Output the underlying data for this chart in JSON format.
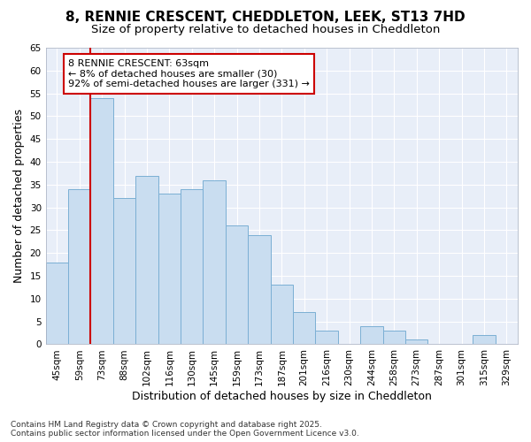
{
  "title_line1": "8, RENNIE CRESCENT, CHEDDLETON, LEEK, ST13 7HD",
  "title_line2": "Size of property relative to detached houses in Cheddleton",
  "xlabel": "Distribution of detached houses by size in Cheddleton",
  "ylabel": "Number of detached properties",
  "categories": [
    "45sqm",
    "59sqm",
    "73sqm",
    "88sqm",
    "102sqm",
    "116sqm",
    "130sqm",
    "145sqm",
    "159sqm",
    "173sqm",
    "187sqm",
    "201sqm",
    "216sqm",
    "230sqm",
    "244sqm",
    "258sqm",
    "273sqm",
    "287sqm",
    "301sqm",
    "315sqm",
    "329sqm"
  ],
  "values": [
    18,
    34,
    54,
    32,
    37,
    33,
    34,
    36,
    26,
    24,
    13,
    7,
    3,
    0,
    4,
    3,
    1,
    0,
    0,
    2,
    0
  ],
  "bar_color": "#c9ddf0",
  "bar_edge_color": "#7bafd4",
  "vline_color": "#cc0000",
  "annotation_text": "8 RENNIE CRESCENT: 63sqm\n← 8% of detached houses are smaller (30)\n92% of semi-detached houses are larger (331) →",
  "annotation_box_color": "#ffffff",
  "annotation_box_edge": "#cc0000",
  "ylim": [
    0,
    65
  ],
  "yticks": [
    0,
    5,
    10,
    15,
    20,
    25,
    30,
    35,
    40,
    45,
    50,
    55,
    60,
    65
  ],
  "background_color": "#ffffff",
  "plot_bg_color": "#e8eef8",
  "grid_color": "#ffffff",
  "footnote": "Contains HM Land Registry data © Crown copyright and database right 2025.\nContains public sector information licensed under the Open Government Licence v3.0.",
  "title_fontsize": 11,
  "subtitle_fontsize": 9.5,
  "axis_label_fontsize": 9,
  "tick_fontsize": 7.5,
  "annotation_fontsize": 8
}
